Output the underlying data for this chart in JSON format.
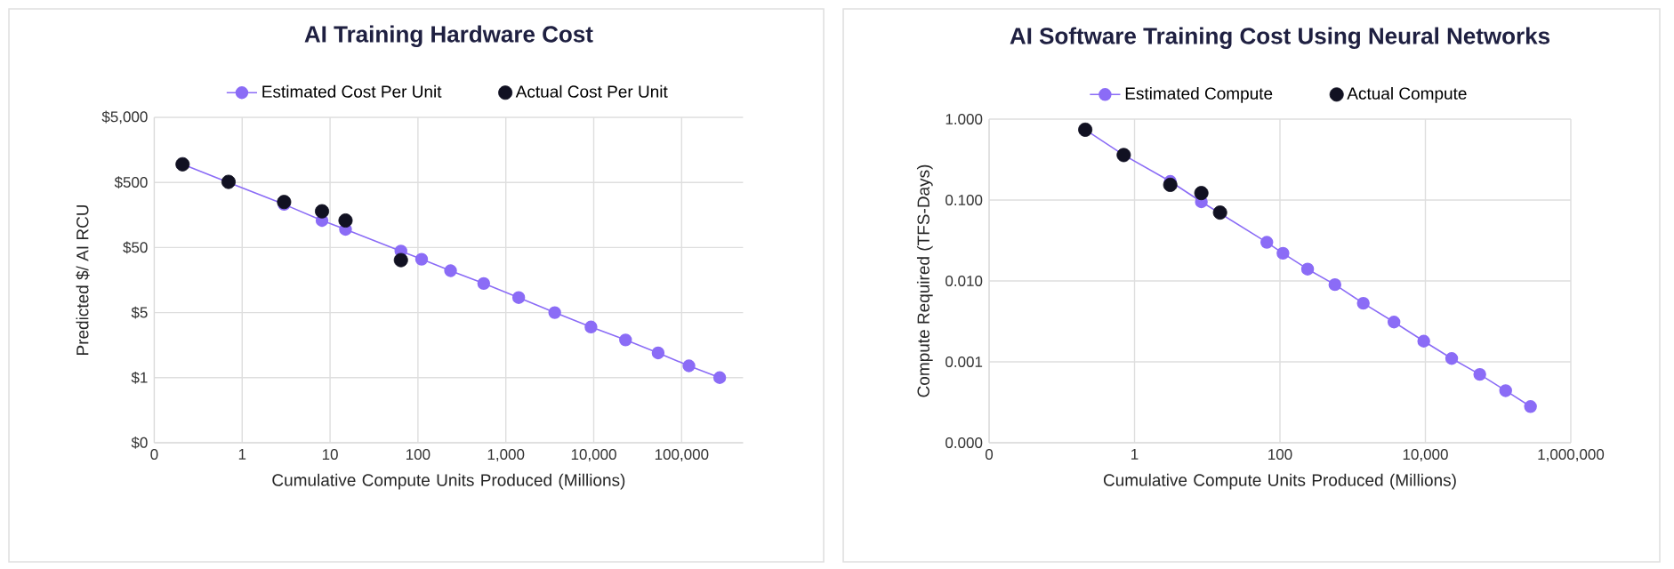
{
  "chart_data": [
    {
      "type": "line",
      "title": "AI Training Hardware Cost",
      "xlabel": "Cumulative Compute Units Produced (Millions)",
      "ylabel": "Predicted $/ AI RCU",
      "log": "xy",
      "grid": true,
      "legend": "top",
      "marker": "circle",
      "xlim": [
        0.1,
        500000
      ],
      "ylim": [
        0.05,
        5000
      ],
      "xticks": [
        {
          "value": 0.1,
          "label": "0"
        },
        1,
        10,
        100,
        {
          "value": 1000,
          "label": "1,000"
        },
        {
          "value": 10000,
          "label": "10,000"
        },
        {
          "value": 100000,
          "label": "100,000"
        }
      ],
      "yticks": [
        {
          "value": 0.05,
          "label": "$0"
        },
        {
          "value": 0.5,
          "label": "$1"
        },
        {
          "value": 5,
          "label": "$5"
        },
        {
          "value": 50,
          "label": "$50"
        },
        {
          "value": 500,
          "label": "$500"
        },
        {
          "value": 5000,
          "label": "$5,000"
        }
      ],
      "series": [
        {
          "name": "Estimated Cost Per Unit",
          "color": "#8b6cf6",
          "x": [
            0.21,
            0.7,
            3.0,
            8.1,
            15,
            64,
            110,
            235,
            560,
            1400,
            3600,
            9300,
            23000,
            54000,
            121000,
            271000
          ],
          "values": [
            950,
            null,
            230,
            130,
            95,
            44,
            33,
            22,
            14,
            8.5,
            5.0,
            3.0,
            1.9,
            1.2,
            0.76,
            0.5
          ]
        },
        {
          "name": "Actual Cost Per Unit",
          "type": "scatter",
          "color": "#111122",
          "x": [
            0.21,
            0.7,
            3.0,
            8.1,
            15,
            64
          ],
          "values": [
            950,
            510,
            250,
            180,
            130,
            32
          ]
        }
      ]
    },
    {
      "type": "line",
      "title": "AI Software Training Cost Using Neural Networks",
      "xlabel": "Cumulative Compute Units Produced (Millions)",
      "ylabel": "Compute Required (TFS-Days)",
      "log": "xy",
      "grid": true,
      "legend": "top",
      "marker": "circle",
      "xlim": [
        0.01,
        1000000
      ],
      "ylim": [
        0.0001,
        1
      ],
      "xticks": [
        {
          "value": 0.01,
          "label": "0"
        },
        1,
        100,
        {
          "value": 10000,
          "label": "10,000"
        },
        {
          "value": 1000000,
          "label": "1,000,000"
        }
      ],
      "yticks": [
        {
          "value": 0.0001,
          "label": "0.000"
        },
        {
          "value": 0.001,
          "label": "0.001"
        },
        {
          "value": 0.01,
          "label": "0.010"
        },
        {
          "value": 0.1,
          "label": "0.100"
        },
        {
          "value": 1,
          "label": "1.000"
        }
      ],
      "series": [
        {
          "name": "Estimated Compute",
          "color": "#8b6cf6",
          "x": [
            0.21,
            0.71,
            3.1,
            8.3,
            15,
            66,
            110,
            240,
            570,
            1400,
            3700,
            9500,
            23000,
            56000,
            127000,
            279000
          ],
          "values": [
            0.74,
            0.36,
            0.17,
            0.095,
            null,
            0.03,
            0.022,
            0.014,
            0.009,
            0.0053,
            0.0031,
            0.0018,
            0.0011,
            0.0007,
            0.00044,
            0.00028
          ]
        },
        {
          "name": "Actual Compute",
          "type": "scatter",
          "color": "#111122",
          "x": [
            0.21,
            0.71,
            3.1,
            8.3,
            15
          ],
          "values": [
            0.74,
            0.36,
            0.154,
            0.122,
            0.07
          ]
        }
      ]
    }
  ]
}
